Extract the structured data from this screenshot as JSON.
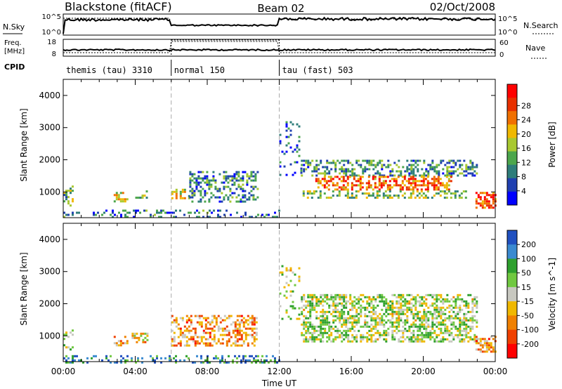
{
  "header": {
    "station": "Blackstone (fitACF)",
    "beam": "Beam 02",
    "date": "02/Oct/2008"
  },
  "summary_panels": {
    "nsky_label": "N.Sky",
    "nsearch_label": "N.Search",
    "freq_label_1": "Freq.",
    "freq_label_2": "[MHz]",
    "nave_label": "Nave",
    "cpid_label": "CPID",
    "noise_left_ticks": [
      "10^5",
      "10^0"
    ],
    "noise_right_ticks": [
      "10^5",
      "10^0"
    ],
    "freq_ticks": [
      "18",
      "8"
    ],
    "nave_ticks": [
      "60",
      "0"
    ],
    "cpid_segments": [
      {
        "start_h": 0,
        "end_h": 6,
        "label": "themis (tau) 3310"
      },
      {
        "start_h": 6,
        "end_h": 12,
        "label": "normal 150"
      },
      {
        "start_h": 12,
        "end_h": 24,
        "label": "tau (fast) 503"
      }
    ]
  },
  "chart_data": [
    {
      "type": "heatmap",
      "title": "",
      "parameter": "Power",
      "xlabel": "",
      "ylabel": "Slant Range [km]",
      "xlim": [
        0,
        24
      ],
      "ylim": [
        200,
        4500
      ],
      "y_ticks": [
        1000,
        2000,
        3000,
        4000
      ],
      "colorbar": {
        "label": "Power [dB]",
        "ticks": [
          "4",
          "8",
          "12",
          "16",
          "20",
          "24",
          "28"
        ],
        "colors": [
          "#0000ff",
          "#2040b0",
          "#2e7d7a",
          "#4ca64c",
          "#a8c830",
          "#f0b800",
          "#f07000",
          "#e83000",
          "#ff0000"
        ],
        "range": [
          0,
          30
        ]
      },
      "scatter_regions": [
        {
          "h0": 0.0,
          "h1": 0.5,
          "r0": 600,
          "r1": 1200,
          "level": 0.4,
          "density": 0.35
        },
        {
          "h0": 2.8,
          "h1": 3.6,
          "r0": 700,
          "r1": 1000,
          "level": 0.55,
          "density": 0.5
        },
        {
          "h0": 4.0,
          "h1": 4.7,
          "r0": 850,
          "r1": 1050,
          "level": 0.45,
          "density": 0.55
        },
        {
          "h0": 6.0,
          "h1": 7.0,
          "r0": 800,
          "r1": 1100,
          "level": 0.55,
          "density": 0.5
        },
        {
          "h0": 7.0,
          "h1": 10.8,
          "r0": 700,
          "r1": 1650,
          "level": 0.3,
          "density": 0.4
        },
        {
          "h0": 0.0,
          "h1": 12.0,
          "r0": 200,
          "r1": 450,
          "level": 0.25,
          "density": 0.25
        },
        {
          "h0": 12.0,
          "h1": 13.2,
          "r0": 1500,
          "r1": 3200,
          "level": 0.2,
          "density": 0.12
        },
        {
          "h0": 13.2,
          "h1": 23.0,
          "r0": 1500,
          "r1": 2000,
          "level": 0.3,
          "density": 0.45
        },
        {
          "h0": 14.0,
          "h1": 21.5,
          "r0": 1050,
          "r1": 1500,
          "level": 0.75,
          "density": 0.5
        },
        {
          "h0": 13.3,
          "h1": 22.5,
          "r0": 850,
          "r1": 1050,
          "level": 0.45,
          "density": 0.35
        },
        {
          "h0": 22.9,
          "h1": 24.0,
          "r0": 500,
          "r1": 1000,
          "level": 0.85,
          "density": 0.6
        }
      ]
    },
    {
      "type": "heatmap",
      "title": "",
      "parameter": "Velocity",
      "xlabel": "Time UT",
      "ylabel": "Slant Range [km]",
      "xlim": [
        0,
        24
      ],
      "ylim": [
        200,
        4500
      ],
      "y_ticks": [
        1000,
        2000,
        3000,
        4000
      ],
      "x_ticks": [
        "00:00",
        "04:00",
        "08:00",
        "12:00",
        "16:00",
        "20:00",
        "00:00"
      ],
      "colorbar": {
        "label": "Velocity [m s^-1]",
        "ticks": [
          "200",
          "100",
          "50",
          "15",
          "-15",
          "-50",
          "-100",
          "-200"
        ],
        "colors": [
          "#2050c0",
          "#3a8ad0",
          "#2ea02e",
          "#70c840",
          "#c8c8c0",
          "#f0b800",
          "#f08000",
          "#f04000",
          "#ff0000"
        ],
        "range": [
          -250,
          250
        ]
      },
      "scatter_regions": [
        {
          "h0": 0.0,
          "h1": 0.5,
          "r0": 600,
          "r1": 1200,
          "level": 0.5,
          "density": 0.35
        },
        {
          "h0": 2.8,
          "h1": 3.6,
          "r0": 700,
          "r1": 1000,
          "level": 0.65,
          "density": 0.5
        },
        {
          "h0": 3.8,
          "h1": 4.7,
          "r0": 800,
          "r1": 1100,
          "level": 0.6,
          "density": 0.55
        },
        {
          "h0": 6.0,
          "h1": 10.8,
          "r0": 700,
          "r1": 1650,
          "level": 0.68,
          "density": 0.45
        },
        {
          "h0": 0.0,
          "h1": 12.0,
          "r0": 200,
          "r1": 400,
          "level": 0.2,
          "density": 0.3
        },
        {
          "h0": 12.0,
          "h1": 13.2,
          "r0": 1500,
          "r1": 3200,
          "level": 0.45,
          "density": 0.15
        },
        {
          "h0": 13.2,
          "h1": 23.0,
          "r0": 850,
          "r1": 2300,
          "level": 0.45,
          "density": 0.55
        },
        {
          "h0": 22.9,
          "h1": 24.0,
          "r0": 500,
          "r1": 1000,
          "level": 0.7,
          "density": 0.6
        }
      ]
    }
  ]
}
